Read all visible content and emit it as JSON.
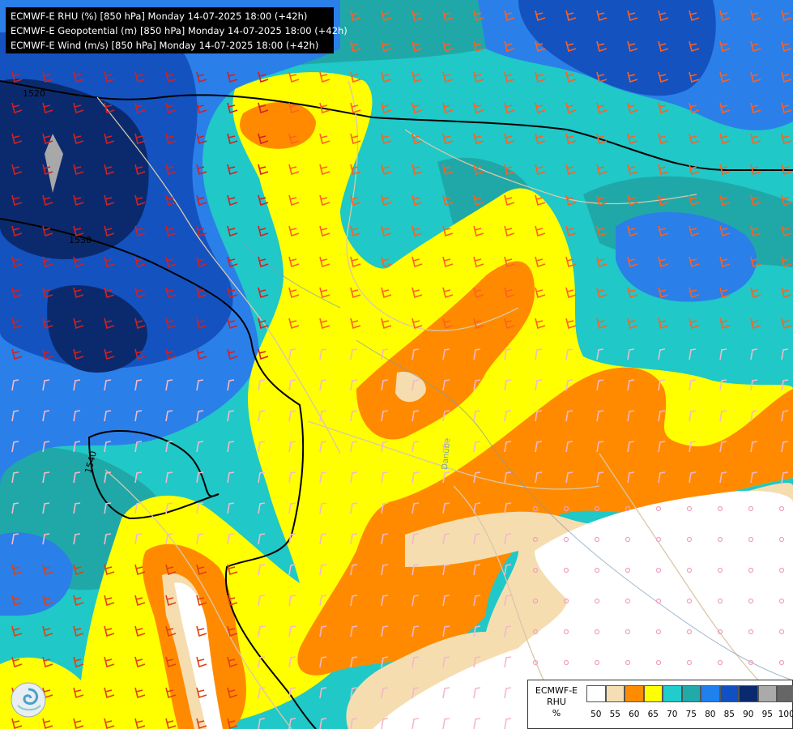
{
  "header": {
    "lines": [
      "ECMWF-E RHU (%) [850 hPa] Monday 14-07-2025 18:00 (+42h)",
      "ECMWF-E Geopotential (m) [850 hPa] Monday 14-07-2025 18:00 (+42h)",
      "ECMWF-E Wind (m/s) [850 hPa] Monday 14-07-2025 18:00 (+42h)"
    ]
  },
  "contours": {
    "labels": [
      "1520",
      "1530",
      "1540"
    ]
  },
  "map_labels": {
    "river": "Danube"
  },
  "legend": {
    "title_line1": "ECMWF-E",
    "title_line2": "RHU",
    "title_line3": "%",
    "ticks": [
      "50",
      "55",
      "60",
      "65",
      "70",
      "75",
      "80",
      "85",
      "90",
      "95",
      "100"
    ],
    "colors": [
      "#ffffff",
      "#f5deb3",
      "#ff8c00",
      "#ffff00",
      "#20cccc",
      "#20aaaa",
      "#2080ee",
      "#1050c0",
      "#0a2a70",
      "#aaaaaa",
      "#666666"
    ]
  },
  "colors": {
    "background": "#ffffff",
    "title_bg": "#000000",
    "contour_line": "#000000",
    "border_line": "#d8c8a8"
  }
}
